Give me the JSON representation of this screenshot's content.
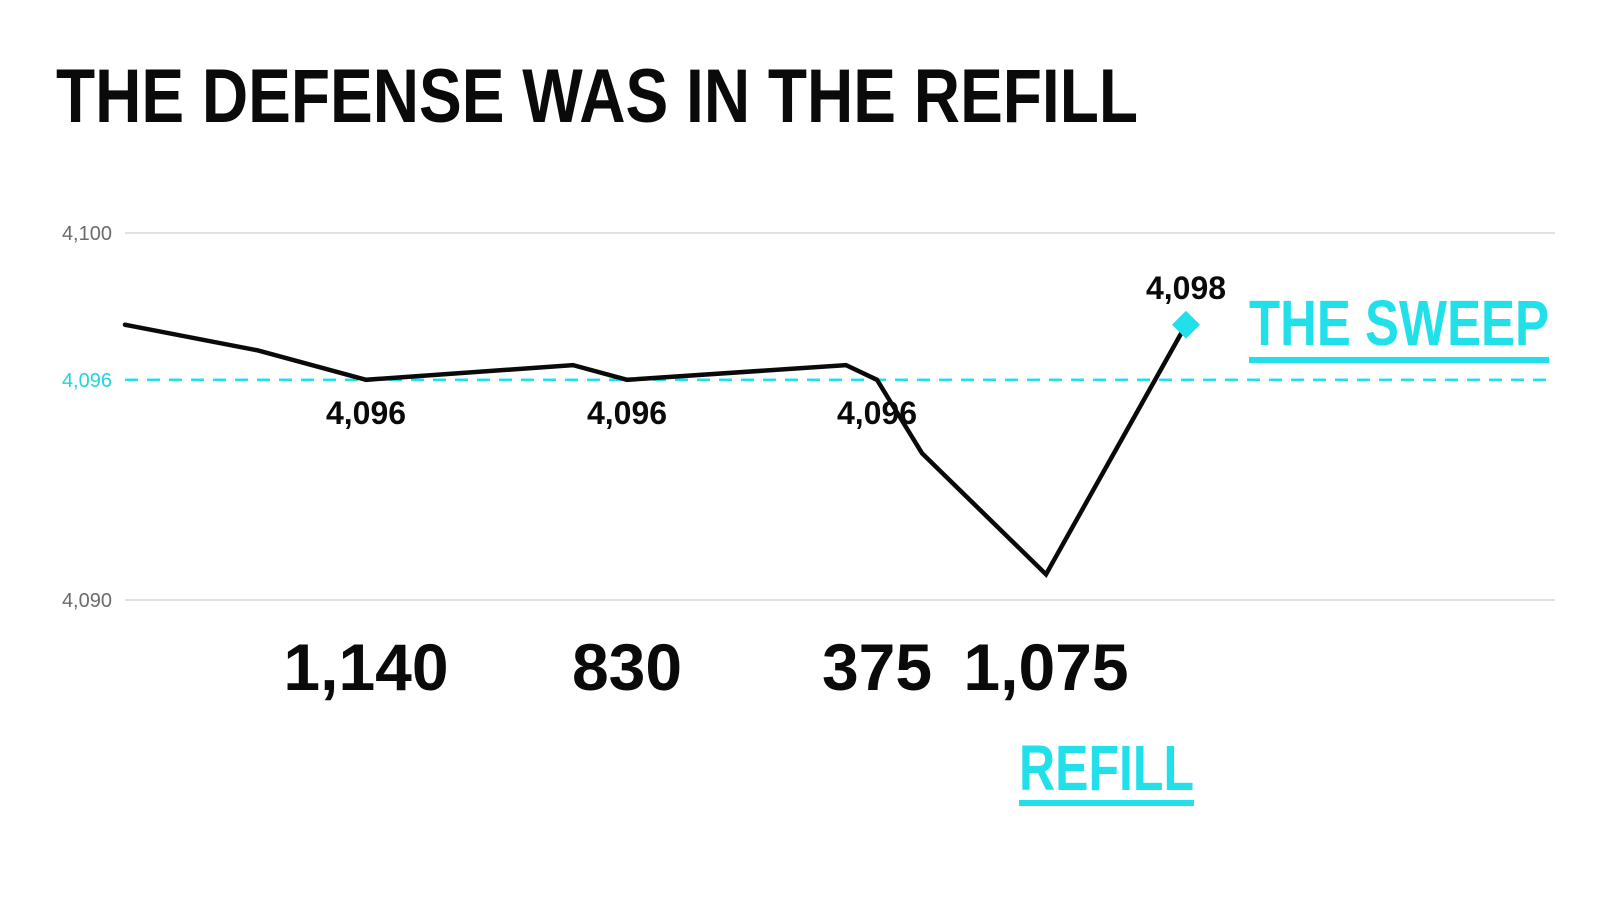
{
  "chart_data": {
    "type": "line",
    "title": "THE DEFENSE WAS IN THE REFILL",
    "ylim": [
      4090,
      4100
    ],
    "yticks": [
      {
        "value": 4100,
        "label": "4,100"
      },
      {
        "value": 4096,
        "label": "4,096"
      },
      {
        "value": 4090,
        "label": "4,090"
      }
    ],
    "grid": true,
    "x": [
      0,
      1,
      2,
      3,
      4,
      5,
      6,
      7,
      8,
      9
    ],
    "series": [
      {
        "values": [
          4097.5,
          4096.8,
          4096.0,
          4096.4,
          4096.0,
          4096.4,
          4096.0,
          4094.0,
          4090.7,
          4097.5
        ]
      }
    ],
    "reference_line": {
      "value": 4096,
      "label": "4,096",
      "style": "dashed"
    },
    "point_labels": [
      {
        "index": 2,
        "text": "4,096"
      },
      {
        "index": 4,
        "text": "4,096"
      },
      {
        "index": 6,
        "text": "4,096"
      },
      {
        "index": 9,
        "text": "4,098"
      }
    ],
    "volume_labels": [
      {
        "index": 2,
        "text": "1,140"
      },
      {
        "index": 4,
        "text": "830"
      },
      {
        "index": 6,
        "text": "375"
      },
      {
        "index": 8,
        "text": "1,075"
      }
    ],
    "callouts": {
      "sweep": "THE SWEEP",
      "refill": "REFILL"
    },
    "colors": {
      "line": "#0a0a0a",
      "accent": "#22e0ea",
      "grid": "#d9d9d9",
      "text": "#0a0a0a",
      "axis_text": "#6b6b6b"
    }
  }
}
